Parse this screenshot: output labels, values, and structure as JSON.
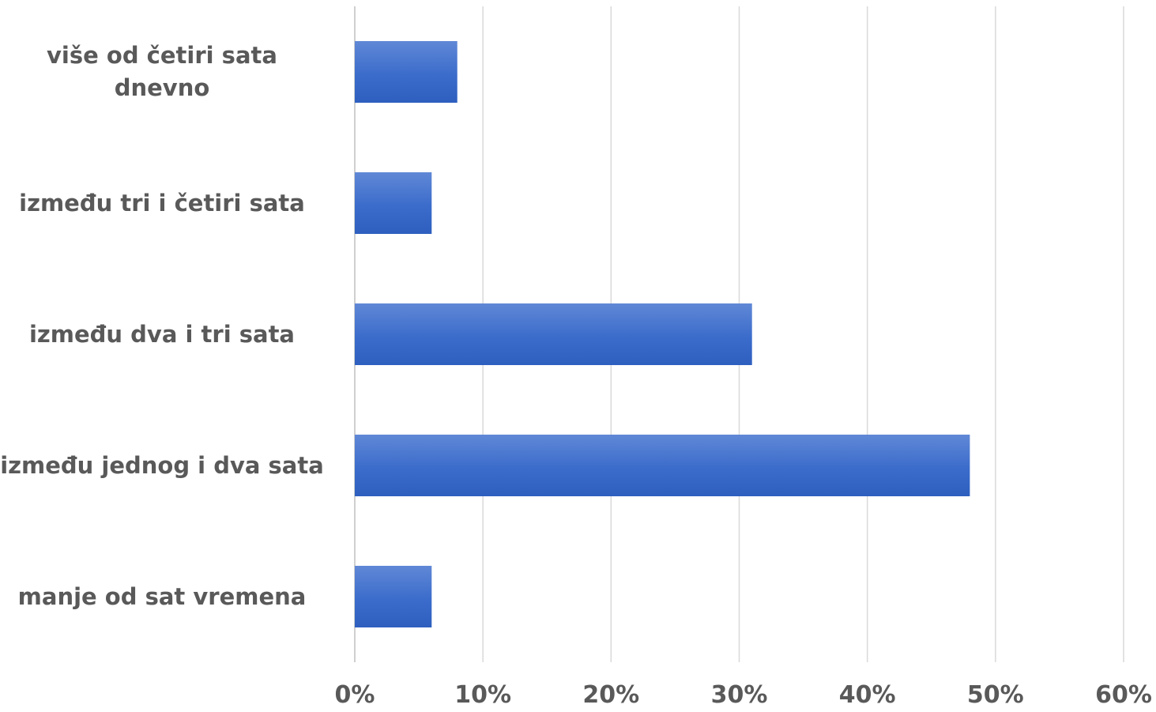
{
  "chart_data": {
    "type": "bar",
    "orientation": "horizontal",
    "categories": [
      "više od četiri sata dnevno",
      "između tri i četiri sata",
      "između dva i tri sata",
      "između jednog i dva sata",
      "manje od sat vremena"
    ],
    "values": [
      8,
      6,
      31,
      48,
      6
    ],
    "xlim": [
      0,
      60
    ],
    "xticks": [
      "0%",
      "10%",
      "20%",
      "30%",
      "40%",
      "50%",
      "60%"
    ],
    "grid": true,
    "legend": "none",
    "bar_color": "#4472C4"
  }
}
